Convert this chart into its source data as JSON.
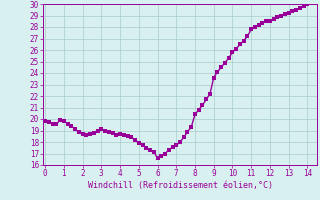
{
  "x": [
    0,
    0.2,
    0.4,
    0.6,
    0.8,
    1.0,
    1.2,
    1.4,
    1.6,
    1.8,
    2.0,
    2.2,
    2.4,
    2.6,
    2.8,
    3.0,
    3.2,
    3.4,
    3.6,
    3.8,
    4.0,
    4.2,
    4.4,
    4.6,
    4.8,
    5.0,
    5.2,
    5.4,
    5.6,
    5.8,
    6.0,
    6.2,
    6.4,
    6.6,
    6.8,
    7.0,
    7.2,
    7.4,
    7.6,
    7.8,
    8.0,
    8.2,
    8.4,
    8.6,
    8.8,
    9.0,
    9.2,
    9.4,
    9.6,
    9.8,
    10.0,
    10.2,
    10.4,
    10.6,
    10.8,
    11.0,
    11.2,
    11.4,
    11.6,
    11.8,
    12.0,
    12.2,
    12.4,
    12.6,
    12.8,
    13.0,
    13.2,
    13.4,
    13.6,
    13.8,
    14.0,
    14.2,
    14.4
  ],
  "y": [
    19.8,
    19.7,
    19.6,
    19.55,
    19.9,
    19.8,
    19.6,
    19.4,
    19.1,
    18.85,
    18.7,
    18.65,
    18.7,
    18.8,
    19.0,
    19.1,
    19.0,
    18.9,
    18.75,
    18.65,
    18.7,
    18.6,
    18.5,
    18.4,
    18.2,
    17.9,
    17.7,
    17.5,
    17.3,
    17.15,
    16.6,
    16.75,
    17.0,
    17.3,
    17.55,
    17.7,
    18.0,
    18.4,
    18.9,
    19.3,
    20.4,
    20.8,
    21.2,
    21.7,
    22.2,
    23.6,
    24.1,
    24.5,
    24.9,
    25.3,
    25.8,
    26.1,
    26.5,
    26.8,
    27.2,
    27.8,
    28.0,
    28.2,
    28.35,
    28.5,
    28.55,
    28.7,
    28.85,
    29.0,
    29.1,
    29.2,
    29.35,
    29.5,
    29.65,
    29.8,
    30.0,
    30.15,
    30.3
  ],
  "line_color": "#990099",
  "marker_color": "#990099",
  "bg_color": "#d8f0f0",
  "grid_color": "#aacccc",
  "axis_color": "#990099",
  "tick_color": "#990099",
  "xlabel": "Windchill (Refroidissement éolien,°C)",
  "xlabel_color": "#990099",
  "ylim": [
    16,
    30
  ],
  "xlim": [
    -0.1,
    14.5
  ],
  "yticks": [
    16,
    17,
    18,
    19,
    20,
    21,
    22,
    23,
    24,
    25,
    26,
    27,
    28,
    29,
    30
  ],
  "xticks": [
    0,
    1,
    2,
    3,
    4,
    5,
    6,
    7,
    8,
    9,
    10,
    11,
    12,
    13,
    14
  ],
  "linewidth": 1.0,
  "markersize": 2.2,
  "tick_fontsize": 5.5,
  "xlabel_fontsize": 6.0
}
